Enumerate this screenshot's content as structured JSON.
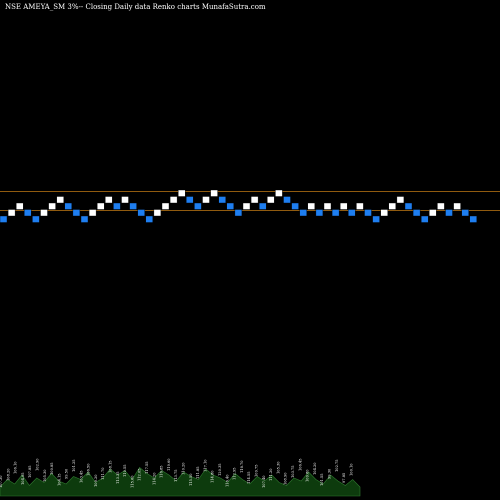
{
  "header": {
    "title": "NSE AMEYA_SM 3%-- Closing Daily data Renko charts MunafaSutra.com"
  },
  "colors": {
    "background": "#000000",
    "up_brick": "#ffffff",
    "down_brick": "#1e7ef0",
    "reference_line": "#c07a14",
    "volume_area": "#0d3b0d",
    "volume_outline": "#2f7a2f",
    "text": "#ffffff"
  },
  "chart_data": {
    "type": "renko",
    "reference_levels": [
      "upper",
      "lower"
    ],
    "bricks": [
      {
        "dir": "down",
        "level": 0
      },
      {
        "dir": "up",
        "level": 1
      },
      {
        "dir": "up",
        "level": 2
      },
      {
        "dir": "down",
        "level": 1
      },
      {
        "dir": "down",
        "level": 0
      },
      {
        "dir": "up",
        "level": 1
      },
      {
        "dir": "up",
        "level": 2
      },
      {
        "dir": "up",
        "level": 3
      },
      {
        "dir": "down",
        "level": 2
      },
      {
        "dir": "down",
        "level": 1
      },
      {
        "dir": "down",
        "level": 0
      },
      {
        "dir": "up",
        "level": 1
      },
      {
        "dir": "up",
        "level": 2
      },
      {
        "dir": "up",
        "level": 3
      },
      {
        "dir": "down",
        "level": 2
      },
      {
        "dir": "up",
        "level": 3
      },
      {
        "dir": "down",
        "level": 2
      },
      {
        "dir": "down",
        "level": 1
      },
      {
        "dir": "down",
        "level": 0
      },
      {
        "dir": "up",
        "level": 1
      },
      {
        "dir": "up",
        "level": 2
      },
      {
        "dir": "up",
        "level": 3
      },
      {
        "dir": "up",
        "level": 4
      },
      {
        "dir": "down",
        "level": 3
      },
      {
        "dir": "down",
        "level": 2
      },
      {
        "dir": "up",
        "level": 3
      },
      {
        "dir": "up",
        "level": 4
      },
      {
        "dir": "down",
        "level": 3
      },
      {
        "dir": "down",
        "level": 2
      },
      {
        "dir": "down",
        "level": 1
      },
      {
        "dir": "up",
        "level": 2
      },
      {
        "dir": "up",
        "level": 3
      },
      {
        "dir": "down",
        "level": 2
      },
      {
        "dir": "up",
        "level": 3
      },
      {
        "dir": "up",
        "level": 4
      },
      {
        "dir": "down",
        "level": 3
      },
      {
        "dir": "down",
        "level": 2
      },
      {
        "dir": "down",
        "level": 1
      },
      {
        "dir": "up",
        "level": 2
      },
      {
        "dir": "down",
        "level": 1
      },
      {
        "dir": "up",
        "level": 2
      },
      {
        "dir": "down",
        "level": 1
      },
      {
        "dir": "up",
        "level": 2
      },
      {
        "dir": "down",
        "level": 1
      },
      {
        "dir": "up",
        "level": 2
      },
      {
        "dir": "down",
        "level": 1
      },
      {
        "dir": "down",
        "level": 0
      },
      {
        "dir": "up",
        "level": 1
      },
      {
        "dir": "up",
        "level": 2
      },
      {
        "dir": "up",
        "level": 3
      },
      {
        "dir": "down",
        "level": 2
      },
      {
        "dir": "down",
        "level": 1
      },
      {
        "dir": "down",
        "level": 0
      },
      {
        "dir": "up",
        "level": 1
      },
      {
        "dir": "up",
        "level": 2
      },
      {
        "dir": "down",
        "level": 1
      },
      {
        "dir": "up",
        "level": 2
      },
      {
        "dir": "down",
        "level": 1
      },
      {
        "dir": "down",
        "level": 0
      }
    ],
    "volume_profile": [
      0.3,
      0.55,
      0.4,
      0.7,
      0.35,
      0.6,
      0.45,
      0.75,
      0.5,
      0.4,
      0.65,
      0.55,
      0.8,
      0.45,
      0.6,
      0.9,
      0.7,
      0.85,
      0.55,
      0.95,
      0.75,
      0.6,
      0.85,
      0.7,
      0.5,
      0.8,
      0.65,
      0.55,
      0.9,
      0.7,
      0.6,
      0.45,
      0.75,
      0.55,
      0.4,
      0.65,
      0.5,
      0.7,
      0.45,
      0.35,
      0.6,
      0.5,
      0.8,
      0.55,
      0.4,
      0.7,
      0.5,
      0.35,
      0.55,
      0.3
    ],
    "price_labels": [
      "107.30",
      "108.20",
      "106.10",
      "104.05",
      "107.85",
      "102.90",
      "105.30",
      "100.85",
      "104.15",
      "99.50",
      "101.25",
      "103.45",
      "106.50",
      "109.20",
      "111.70",
      "108.15",
      "113.35",
      "110.55",
      "115.00",
      "112.05",
      "117.55",
      "114.20",
      "116.85",
      "119.60",
      "113.75",
      "110.20",
      "115.50",
      "111.85",
      "117.10",
      "114.80",
      "120.35",
      "116.40",
      "112.95",
      "118.70",
      "114.55",
      "109.75",
      "107.40",
      "111.20",
      "105.30",
      "108.90",
      "103.75",
      "106.45",
      "109.80",
      "104.20",
      "101.55",
      "99.30",
      "102.75",
      "97.85",
      "100.10"
    ]
  }
}
